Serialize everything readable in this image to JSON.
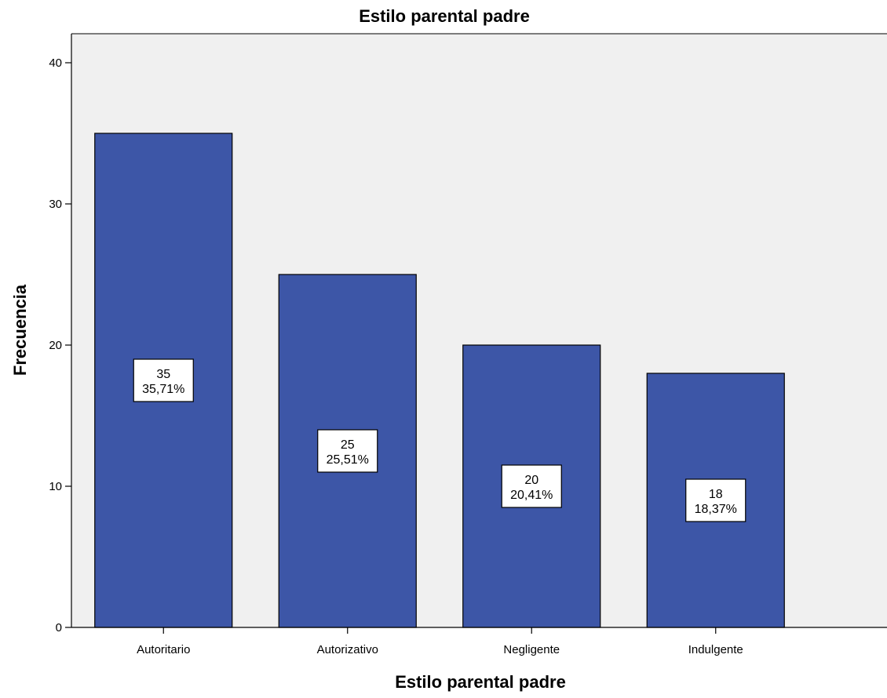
{
  "chart_data": {
    "type": "bar",
    "title": "Estilo parental padre",
    "xlabel": "Estilo parental padre",
    "ylabel": "Frecuencia",
    "categories": [
      "Autoritario",
      "Autorizativo",
      "Negligente",
      "Indulgente"
    ],
    "values": [
      35,
      25,
      20,
      18
    ],
    "data_labels": [
      {
        "count": "35",
        "percent": "35,71%"
      },
      {
        "count": "25",
        "percent": "25,51%"
      },
      {
        "count": "20",
        "percent": "20,41%"
      },
      {
        "count": "18",
        "percent": "18,37%"
      }
    ],
    "y_ticks": [
      0,
      10,
      20,
      30,
      40
    ],
    "ylim": [
      0,
      42
    ],
    "grid": false,
    "colors": {
      "bar_fill": "#3d56a7",
      "plot_background": "#f0f0f0",
      "label_box": "#ffffff"
    }
  }
}
